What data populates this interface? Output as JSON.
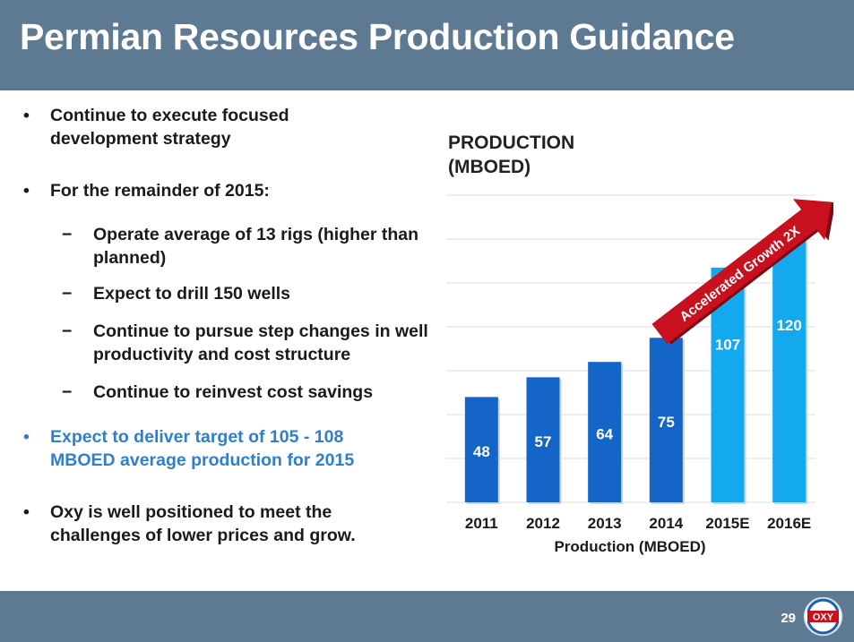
{
  "slide": {
    "title": "Permian Resources Production Guidance",
    "page_number": "29",
    "logo_text": "OXY"
  },
  "bullets": [
    {
      "type": "main",
      "marker": "•",
      "text": "Continue to execute focused development strategy"
    },
    {
      "type": "main",
      "marker": "•",
      "text": "For the remainder of 2015:"
    },
    {
      "type": "sub",
      "marker": "−",
      "text": "Operate average of 13 rigs (higher than planned)"
    },
    {
      "type": "sub",
      "marker": "−",
      "text": "Expect to drill 150 wells"
    },
    {
      "type": "sub",
      "marker": "−",
      "text": "Continue to pursue step changes in well productivity and cost structure"
    },
    {
      "type": "sub",
      "marker": "−",
      "text": "Continue to reinvest cost savings"
    },
    {
      "type": "highlight",
      "marker": "•",
      "text": "Expect to deliver target of 105 - 108 MBOED average production for 2015"
    },
    {
      "type": "main",
      "marker": "•",
      "text": "Oxy is well positioned to meet the challenges of lower prices and grow."
    }
  ],
  "chart_data": {
    "type": "bar",
    "title_line1": "PRODUCTION",
    "title_line2": "(MBOED)",
    "xlabel": "Production (MBOED)",
    "ylabel": "",
    "categories": [
      "2011",
      "2012",
      "2013",
      "2014",
      "2015E",
      "2016E"
    ],
    "values": [
      48,
      57,
      64,
      75,
      107,
      120
    ],
    "ylim": [
      0,
      140
    ],
    "grid": true,
    "annotation": "Accelerated Growth 2X",
    "colors": {
      "actual": "#1565c8",
      "estimate": "#14a8ee",
      "arrow": "#c8101e",
      "grid": "#dddddd",
      "label": "#ffffff"
    }
  }
}
